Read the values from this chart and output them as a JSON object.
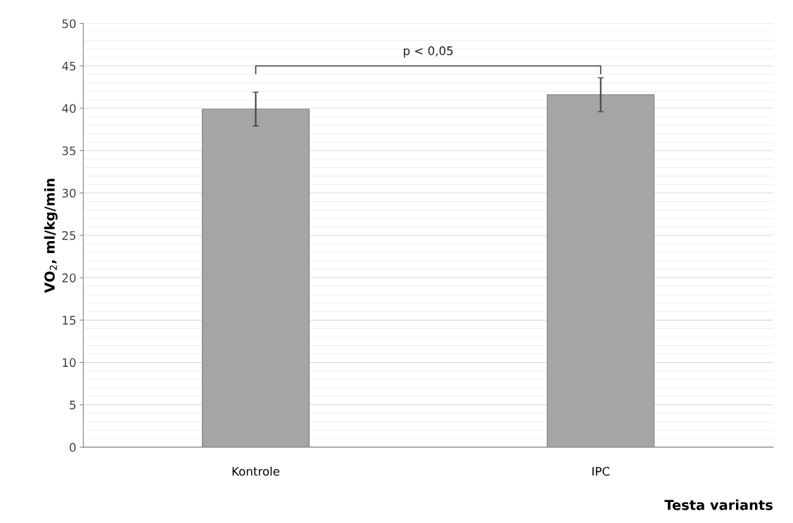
{
  "chart_data": {
    "type": "bar",
    "xlabel": "Testa variants",
    "ylabel": "VO$_{2}$, ml/kg/min",
    "categories": [
      "Kontrole",
      "IPC"
    ],
    "values": [
      39.9,
      41.6
    ],
    "color": "#a5a5a5",
    "errors": [
      2.0,
      2.0
    ],
    "ylim": [
      0,
      50
    ],
    "yticks": [
      0,
      5,
      10,
      15,
      20,
      25,
      30,
      35,
      40,
      45,
      50
    ],
    "grid": "y",
    "annotations": [
      "p < 0,05"
    ]
  }
}
